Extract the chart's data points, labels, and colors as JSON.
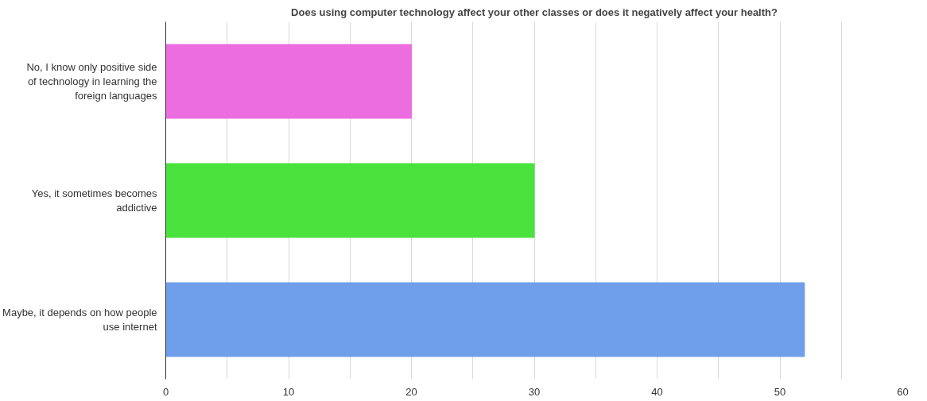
{
  "chart_data": {
    "type": "bar",
    "orientation": "horizontal",
    "title": "Does using computer technology affect your other classes or does it negatively affect your health?",
    "categories": [
      "No, I know only positive side of technology in learning the foreign languages",
      "Yes, it sometimes becomes addictive",
      "Maybe, it depends on how people use internet"
    ],
    "values": [
      20,
      30,
      52
    ],
    "colors": [
      "#ec6ddf",
      "#4ae23c",
      "#6f9fea"
    ],
    "xlim": [
      0,
      60
    ],
    "xticks": [
      0,
      {
        "value": 5,
        "label": null
      },
      10,
      {
        "value": 15,
        "label": null
      },
      20,
      {
        "value": 25,
        "label": null
      },
      30,
      {
        "value": 35,
        "label": null
      },
      40,
      {
        "value": 45,
        "label": null
      },
      50,
      {
        "value": 55,
        "label": null
      },
      60
    ],
    "grid": "x"
  }
}
